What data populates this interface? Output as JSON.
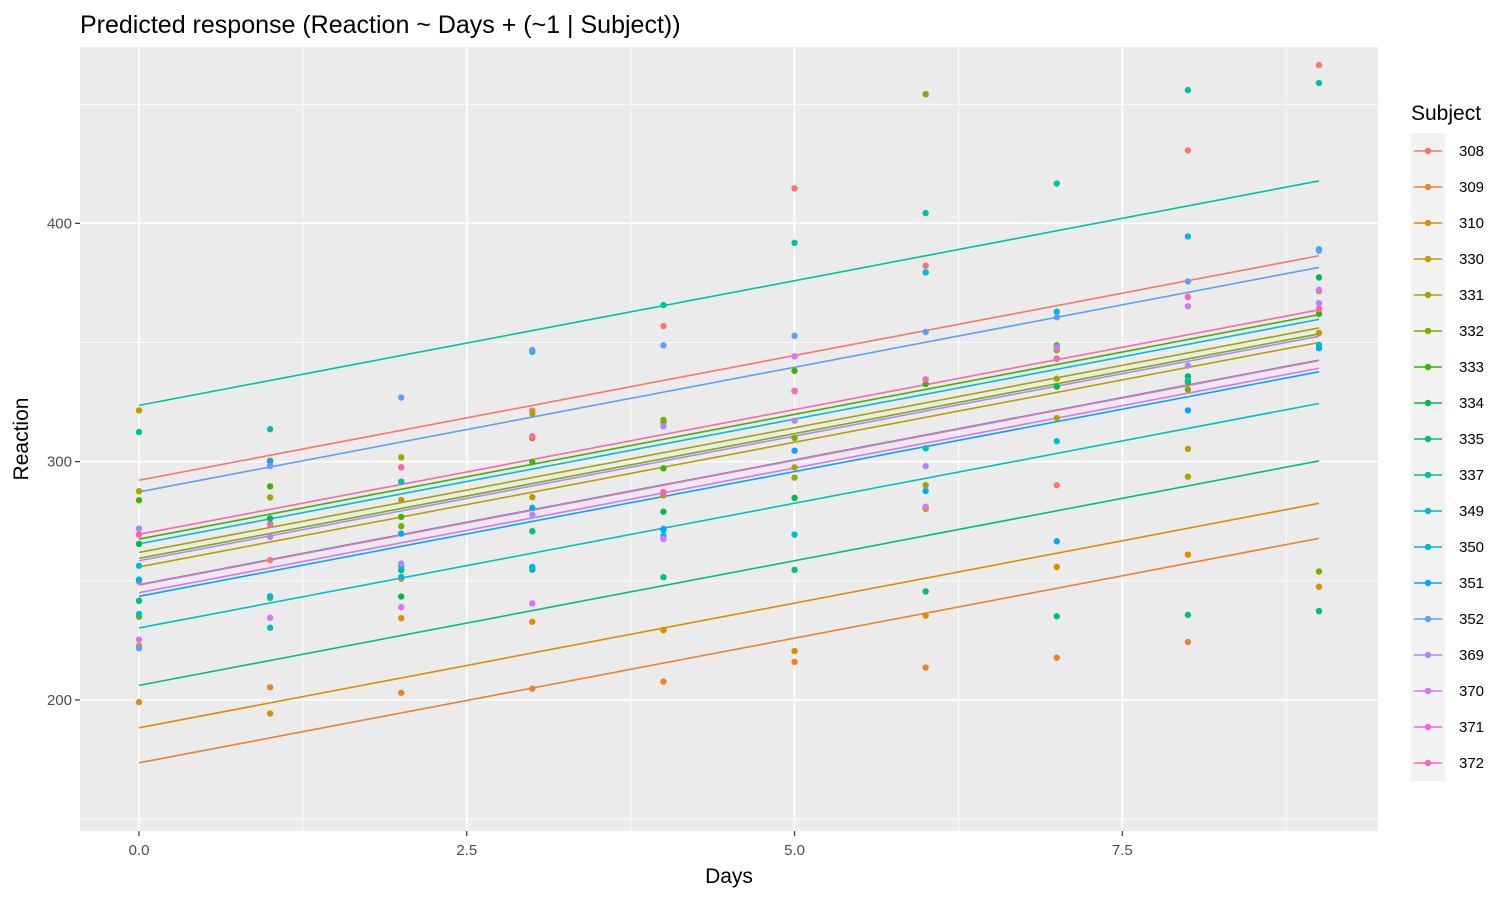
{
  "chart_data": {
    "type": "line",
    "title": "Predicted response (Reaction ~ Days + (~1 | Subject))",
    "xlabel": "Days",
    "ylabel": "Reaction",
    "xlim": [
      -0.45,
      9.45
    ],
    "ylim": [
      145,
      474
    ],
    "x_ticks": [
      0,
      2.5,
      5,
      7.5
    ],
    "x_tick_labels": [
      "0.0",
      "2.5",
      "5.0",
      "7.5"
    ],
    "x_minor_ticks": [
      1.25,
      3.75,
      6.25,
      8.75
    ],
    "y_ticks": [
      200,
      300,
      400
    ],
    "y_tick_labels": [
      "200",
      "300",
      "400"
    ],
    "y_minor_ticks": [
      150,
      250,
      350,
      450
    ],
    "grid": true,
    "panel_background": "#EBEBEB",
    "legend": {
      "title": "Subject",
      "placement": "right"
    },
    "days": [
      0,
      1,
      2,
      3,
      4,
      5,
      6,
      7,
      8,
      9
    ],
    "series": [
      {
        "name": "308",
        "color": "#F8766D",
        "fit": [
          292.2,
          386.4
        ],
        "reaction": [
          249.6,
          258.7,
          250.8,
          321.4,
          356.9,
          414.7,
          382.2,
          290.1,
          430.6,
          466.4
        ]
      },
      {
        "name": "309",
        "color": "#EA8331",
        "fit": [
          173.6,
          267.8
        ],
        "reaction": [
          222.7,
          205.3,
          203.0,
          204.7,
          207.7,
          216.0,
          213.6,
          217.7,
          224.3,
          237.3
        ]
      },
      {
        "name": "310",
        "color": "#D89000",
        "fit": [
          188.3,
          282.5
        ],
        "reaction": [
          199.1,
          194.3,
          234.3,
          232.8,
          229.3,
          220.5,
          235.4,
          255.8,
          261.0,
          247.5
        ]
      },
      {
        "name": "330",
        "color": "#C09B00",
        "fit": [
          255.8,
          350.0
        ],
        "reaction": [
          321.5,
          300.4,
          283.9,
          285.1,
          285.8,
          297.6,
          280.2,
          318.3,
          305.3,
          354.0
        ]
      },
      {
        "name": "331",
        "color": "#A3A500",
        "fit": [
          261.9,
          356.1
        ],
        "reaction": [
          287.6,
          285.0,
          301.8,
          320.1,
          316.3,
          293.3,
          290.1,
          334.8,
          293.7,
          371.6
        ]
      },
      {
        "name": "332",
        "color": "#7CAE00",
        "fit": [
          259.4,
          353.6
        ],
        "reaction": [
          234.9,
          242.8,
          272.9,
          309.8,
          317.5,
          309.9,
          454.2,
          346.8,
          330.3,
          253.9
        ]
      },
      {
        "name": "333",
        "color": "#39B600",
        "fit": [
          267.5,
          361.7
        ],
        "reaction": [
          283.8,
          289.6,
          276.8,
          299.8,
          297.2,
          338.1,
          332.6,
          348.8,
          333.4,
          362.0
        ]
      },
      {
        "name": "334",
        "color": "#00BB4E",
        "fit": [
          248.4,
          342.6
        ],
        "reaction": [
          265.5,
          276.2,
          243.4,
          254.7,
          279.0,
          284.8,
          305.6,
          331.5,
          335.8,
          377.3
        ]
      },
      {
        "name": "335",
        "color": "#00BF7D",
        "fit": [
          206.1,
          300.3
        ],
        "reaction": [
          241.6,
          273.9,
          254.5,
          270.8,
          251.5,
          254.6,
          245.5,
          235.1,
          235.7,
          237.3
        ]
      },
      {
        "name": "337",
        "color": "#00C1A3",
        "fit": [
          323.6,
          417.8
        ],
        "reaction": [
          312.4,
          313.6,
          291.6,
          346.1,
          365.7,
          391.8,
          404.3,
          416.7,
          455.9,
          458.9
        ]
      },
      {
        "name": "349",
        "color": "#00BFC4",
        "fit": [
          230.2,
          324.4
        ],
        "reaction": [
          236.1,
          230.3,
          251.6,
          255.8,
          271.3,
          269.4,
          305.6,
          308.6,
          334.2,
          349.0
        ]
      },
      {
        "name": "350",
        "color": "#00B8E7",
        "fit": [
          265.5,
          359.7
        ],
        "reaction": [
          256.3,
          243.5,
          256.2,
          255.5,
          268.9,
          329.7,
          379.4,
          362.9,
          394.5,
          389.1
        ]
      },
      {
        "name": "351",
        "color": "#00A9FF",
        "fit": [
          243.5,
          337.7
        ],
        "reaction": [
          250.5,
          300.1,
          269.8,
          280.6,
          271.8,
          304.6,
          287.7,
          266.6,
          321.5,
          347.6
        ]
      },
      {
        "name": "352",
        "color": "#619CFF",
        "fit": [
          287.3,
          381.5
        ],
        "reaction": [
          221.7,
          298.2,
          326.9,
          346.8,
          348.8,
          352.8,
          354.4,
          360.6,
          375.6,
          388.5
        ]
      },
      {
        "name": "369",
        "color": "#AE87FF",
        "fit": [
          258.4,
          352.6
        ],
        "reaction": [
          271.9,
          268.4,
          257.2,
          277.7,
          314.8,
          317.2,
          298.1,
          348.1,
          340.3,
          366.5
        ]
      },
      {
        "name": "370",
        "color": "#DB72FB",
        "fit": [
          245.0,
          339.2
        ],
        "reaction": [
          225.3,
          234.5,
          238.9,
          240.5,
          267.5,
          344.2,
          281.1,
          347.6,
          365.2,
          372.2
        ]
      },
      {
        "name": "371",
        "color": "#F564E3",
        "fit": [
          248.2,
          342.4
        ],
        "reaction": [
          269.4,
          273.5,
          297.6,
          310.6,
          287.2,
          329.6,
          334.5,
          343.2,
          369.1,
          364.1
        ]
      },
      {
        "name": "372",
        "color": "#FF64B0",
        "fit": [
          269.5,
          363.7
        ],
        "reaction": [
          269.4,
          273.5,
          297.6,
          310.6,
          287.2,
          329.6,
          334.5,
          343.2,
          369.1,
          364.1
        ]
      }
    ]
  }
}
